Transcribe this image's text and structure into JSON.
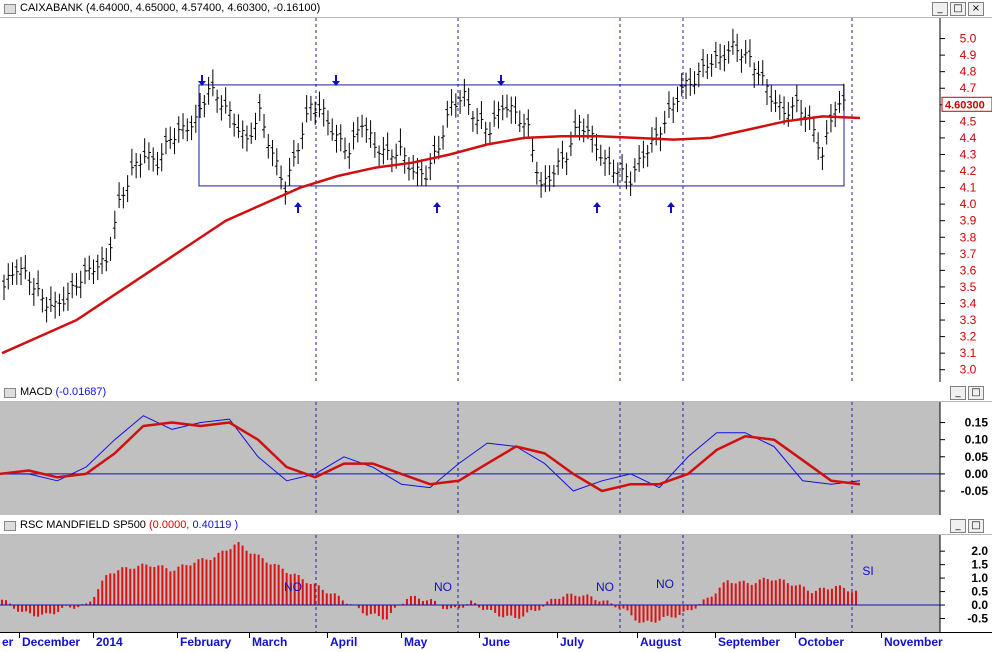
{
  "price_panel": {
    "title_name": "CAIXABANK",
    "title_values": "(4.64000, 4.65000, 4.57400, 4.60300, -0.16100)",
    "last_price": "4.60300",
    "y_ticks": [
      "5.0",
      "4.9",
      "4.8",
      "4.7",
      "4.6",
      "4.5",
      "4.4",
      "4.3",
      "4.2",
      "4.1",
      "4.0",
      "3.9",
      "3.8",
      "3.7",
      "3.6",
      "3.5",
      "3.4",
      "3.3",
      "3.2",
      "3.1",
      "3.0"
    ]
  },
  "macd_panel": {
    "title_name": "MACD",
    "title_values": "(-0.01687)",
    "y_ticks": [
      "0.15",
      "0.10",
      "0.05",
      "0.00",
      "-0.05"
    ]
  },
  "rsc_panel": {
    "title_name": "RSC MANDFIELD SP500",
    "title_val1": "(0.0000,",
    "title_val2": "0.40119 )",
    "y_ticks": [
      "2.0",
      "1.5",
      "1.0",
      "0.5",
      "0.0",
      "-0.5"
    ],
    "annotations": [
      "NO",
      "NO",
      "NO",
      "NO",
      "SI"
    ]
  },
  "x_axis": {
    "months": [
      "er",
      "December",
      "2014",
      "February",
      "March",
      "April",
      "May",
      "June",
      "July",
      "August",
      "September",
      "October",
      "November"
    ]
  },
  "window_buttons": {
    "minimize": "_",
    "restore": "□",
    "close": "×"
  },
  "chart_data": {
    "type": "bar",
    "title": "CAIXABANK",
    "ohlc_last": {
      "open": 4.64,
      "high": 4.65,
      "low": 4.574,
      "close": 4.603,
      "change": -0.161
    },
    "ylim": [
      2.95,
      5.1
    ],
    "support_resistance_box": {
      "top": 4.72,
      "bottom": 4.11
    },
    "close_series": [
      3.5,
      3.62,
      3.55,
      3.42,
      3.38,
      3.45,
      3.55,
      3.62,
      3.65,
      4.0,
      4.2,
      4.3,
      4.25,
      4.4,
      4.45,
      4.5,
      4.7,
      4.62,
      4.5,
      4.38,
      4.55,
      4.3,
      4.1,
      4.35,
      4.6,
      4.55,
      4.4,
      4.32,
      4.5,
      4.35,
      4.3,
      4.32,
      4.2,
      4.18,
      4.35,
      4.6,
      4.65,
      4.5,
      4.45,
      4.6,
      4.55,
      4.45,
      4.1,
      4.2,
      4.3,
      4.5,
      4.4,
      4.25,
      4.2,
      4.15,
      4.3,
      4.4,
      4.55,
      4.7,
      4.75,
      4.85,
      4.88,
      4.95,
      4.9,
      4.8,
      4.65,
      4.55,
      4.6,
      4.5,
      4.3,
      4.6
    ],
    "moving_average_series": [
      3.1,
      3.2,
      3.3,
      3.45,
      3.6,
      3.75,
      3.9,
      4.0,
      4.1,
      4.17,
      4.22,
      4.25,
      4.3,
      4.36,
      4.4,
      4.41,
      4.41,
      4.4,
      4.39,
      4.4,
      4.45,
      4.5,
      4.53,
      4.52
    ],
    "macd_series": [
      0.0,
      0.0,
      -0.02,
      0.02,
      0.1,
      0.17,
      0.13,
      0.15,
      0.16,
      0.05,
      -0.02,
      0.0,
      0.05,
      0.02,
      -0.03,
      -0.04,
      0.03,
      0.09,
      0.08,
      0.03,
      -0.05,
      -0.02,
      0.0,
      -0.04,
      0.05,
      0.12,
      0.12,
      0.08,
      -0.02,
      -0.03,
      -0.02
    ],
    "macd_signal_series": [
      0.0,
      0.01,
      -0.01,
      0.0,
      0.06,
      0.14,
      0.15,
      0.14,
      0.15,
      0.1,
      0.02,
      -0.01,
      0.03,
      0.03,
      0.0,
      -0.03,
      -0.02,
      0.03,
      0.08,
      0.06,
      0.0,
      -0.05,
      -0.03,
      -0.03,
      0.0,
      0.07,
      0.11,
      0.1,
      0.04,
      -0.02,
      -0.03
    ],
    "rsc_series": [
      0.2,
      -0.3,
      -0.4,
      -0.1,
      0.0,
      1.2,
      1.4,
      1.5,
      1.3,
      1.6,
      1.8,
      2.3,
      1.8,
      1.4,
      1.0,
      0.6,
      0.2,
      -0.3,
      -0.5,
      0.3,
      0.2,
      -0.2,
      0.1,
      -0.3,
      -0.5,
      -0.2,
      0.3,
      0.4,
      0.2,
      -0.1,
      -0.7,
      -0.5,
      -0.3,
      0.2,
      0.9,
      0.8,
      1.0,
      0.8,
      0.5,
      0.7,
      0.5
    ]
  }
}
